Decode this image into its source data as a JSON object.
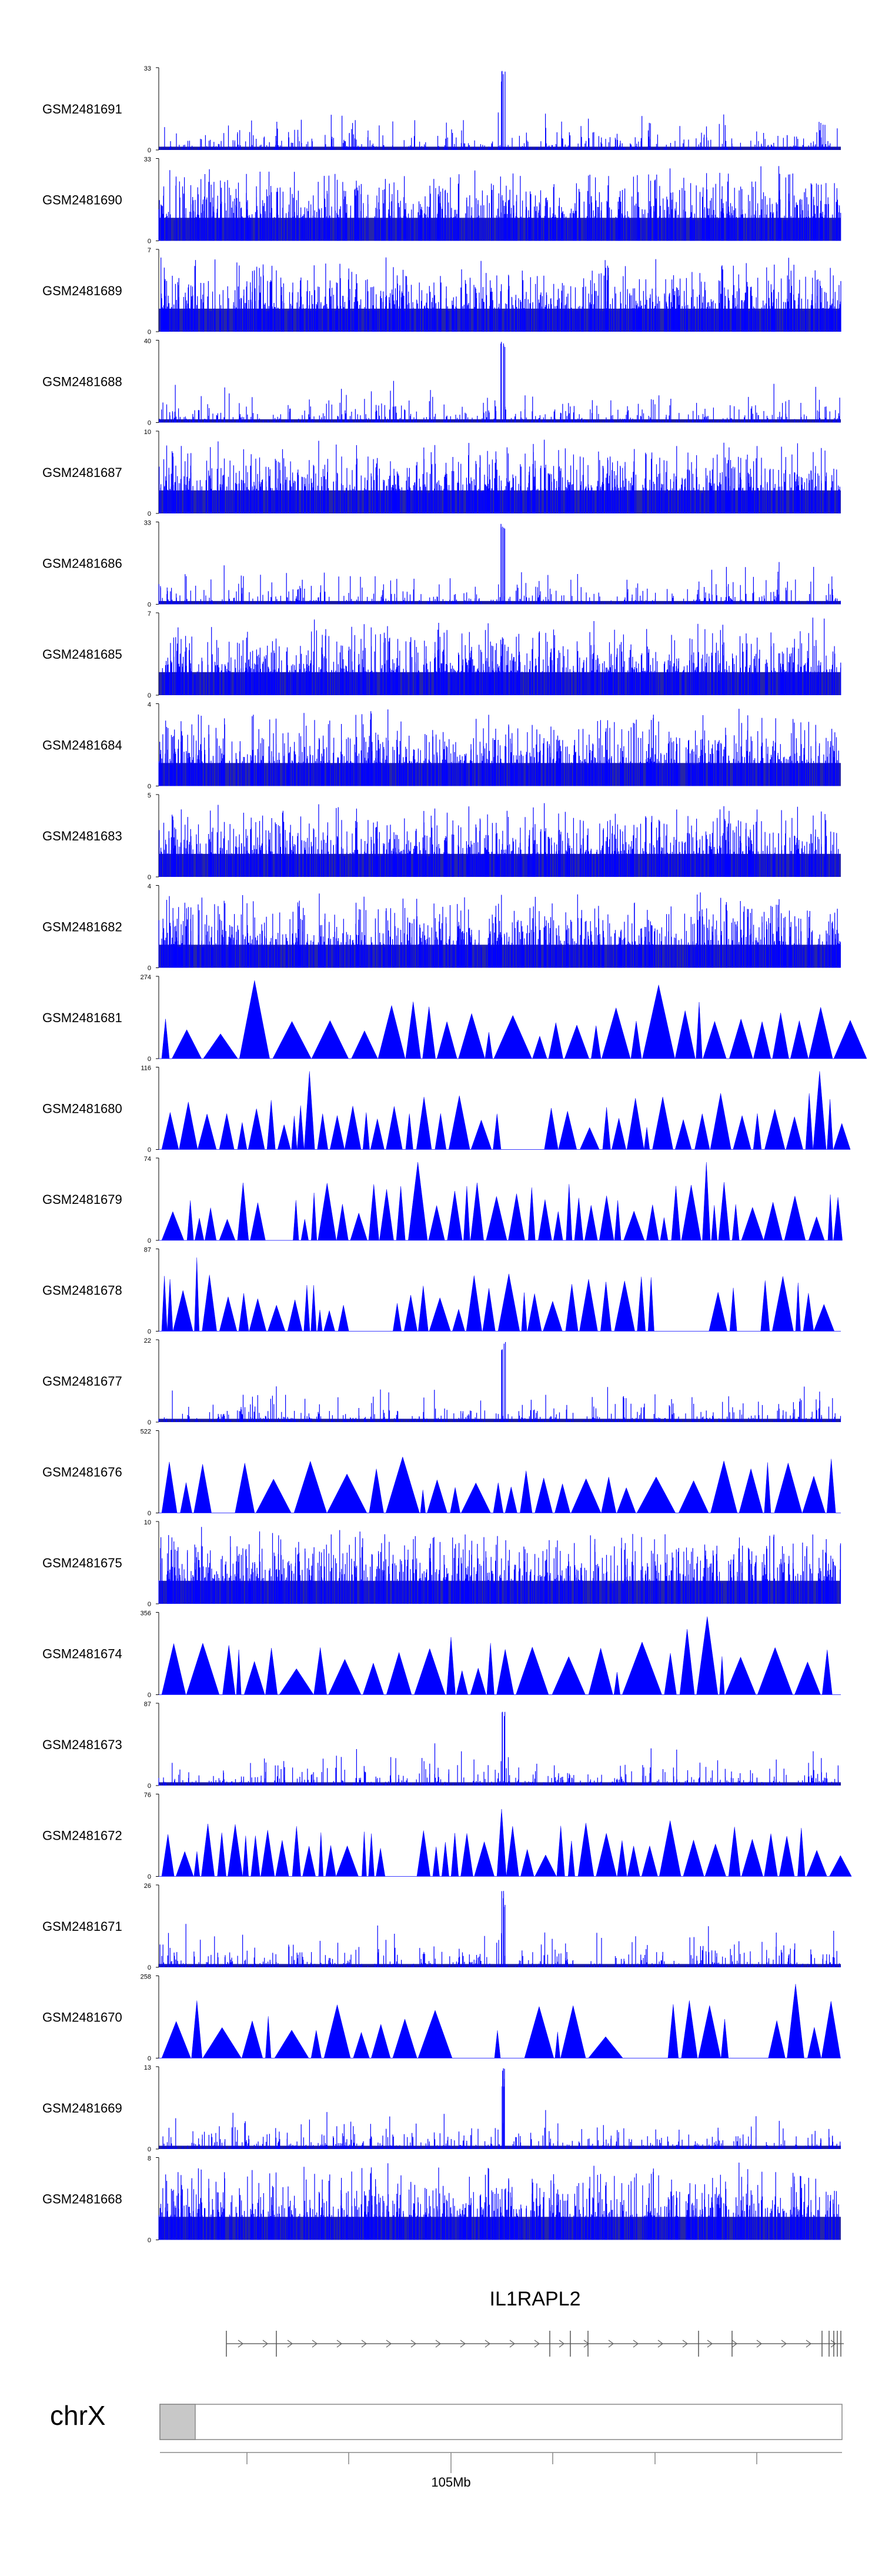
{
  "chart_data": {
    "type": "area",
    "title": "",
    "genome_browser": true,
    "color": "#0000ff",
    "tracks": [
      {
        "name": "GSM2481691",
        "ymax": 33,
        "ymin": 0,
        "style": "spiky"
      },
      {
        "name": "GSM2481690",
        "ymax": 33,
        "ymin": 0,
        "style": "dense"
      },
      {
        "name": "GSM2481689",
        "ymax": 7,
        "ymin": 0,
        "style": "dense"
      },
      {
        "name": "GSM2481688",
        "ymax": 40,
        "ymin": 0,
        "style": "peak"
      },
      {
        "name": "GSM2481687",
        "ymax": 10,
        "ymin": 0,
        "style": "dense"
      },
      {
        "name": "GSM2481686",
        "ymax": 33,
        "ymin": 0,
        "style": "peak"
      },
      {
        "name": "GSM2481685",
        "ymax": 7,
        "ymin": 0,
        "style": "dense"
      },
      {
        "name": "GSM2481684",
        "ymax": 4,
        "ymin": 0,
        "style": "dense"
      },
      {
        "name": "GSM2481683",
        "ymax": 5,
        "ymin": 0,
        "style": "dense"
      },
      {
        "name": "GSM2481682",
        "ymax": 4,
        "ymin": 0,
        "style": "dense"
      },
      {
        "name": "GSM2481681",
        "ymax": 274,
        "ymin": 0,
        "style": "triangles"
      },
      {
        "name": "GSM2481680",
        "ymax": 116,
        "ymin": 0,
        "style": "triangles"
      },
      {
        "name": "GSM2481679",
        "ymax": 74,
        "ymin": 0,
        "style": "triangles"
      },
      {
        "name": "GSM2481678",
        "ymax": 87,
        "ymin": 0,
        "style": "triangles"
      },
      {
        "name": "GSM2481677",
        "ymax": 22,
        "ymin": 0,
        "style": "spiky"
      },
      {
        "name": "GSM2481676",
        "ymax": 522,
        "ymin": 0,
        "style": "triangles"
      },
      {
        "name": "GSM2481675",
        "ymax": 10,
        "ymin": 0,
        "style": "dense"
      },
      {
        "name": "GSM2481674",
        "ymax": 356,
        "ymin": 0,
        "style": "triangles"
      },
      {
        "name": "GSM2481673",
        "ymax": 87,
        "ymin": 0,
        "style": "spiky"
      },
      {
        "name": "GSM2481672",
        "ymax": 76,
        "ymin": 0,
        "style": "triangles"
      },
      {
        "name": "GSM2481671",
        "ymax": 26,
        "ymin": 0,
        "style": "spiky"
      },
      {
        "name": "GSM2481670",
        "ymax": 258,
        "ymin": 0,
        "style": "triangles"
      },
      {
        "name": "GSM2481669",
        "ymax": 13,
        "ymin": 0,
        "style": "spiky"
      },
      {
        "name": "GSM2481668",
        "ymax": 8,
        "ymin": 0,
        "style": "dense"
      }
    ],
    "gene": {
      "name": "IL1RAPL2",
      "strand": "+"
    },
    "chromosome": {
      "name": "chrX",
      "tick_label": "105Mb"
    },
    "grid": false,
    "legend": "none"
  }
}
